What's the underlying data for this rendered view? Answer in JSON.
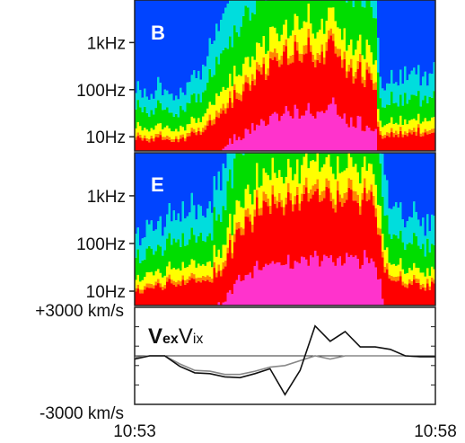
{
  "chart_data": [
    {
      "type": "heatmap",
      "panel_label": "B",
      "y_ticks": [
        "1kHz",
        "100Hz",
        "10Hz"
      ],
      "y_scale": "log",
      "y_tick_values_hz": [
        1000,
        100,
        10
      ],
      "colormap": [
        "#ff33cc",
        "#ff0000",
        "#ff8800",
        "#ffff00",
        "#00dd00",
        "#00dddd",
        "#0044ff"
      ],
      "intensity_profile": {
        "x_fraction": [
          0.0,
          0.1,
          0.2,
          0.25,
          0.35,
          0.45,
          0.55,
          0.65,
          0.7,
          0.8,
          0.82,
          0.9,
          1.0
        ],
        "level": [
          0.2,
          0.2,
          0.22,
          0.45,
          0.7,
          0.85,
          0.9,
          0.92,
          0.85,
          0.75,
          0.25,
          0.25,
          0.3
        ]
      }
    },
    {
      "type": "heatmap",
      "panel_label": "E",
      "y_ticks": [
        "1kHz",
        "100Hz",
        "10Hz"
      ],
      "y_scale": "log",
      "y_tick_values_hz": [
        1000,
        100,
        10
      ],
      "colormap": [
        "#ff33cc",
        "#ff0000",
        "#ff8800",
        "#ffff00",
        "#00dd00",
        "#00dddd",
        "#0044ff"
      ],
      "intensity_profile": {
        "x_fraction": [
          0.0,
          0.1,
          0.18,
          0.25,
          0.3,
          0.35,
          0.45,
          0.55,
          0.62,
          0.72,
          0.8,
          0.84,
          0.9,
          1.0
        ],
        "level": [
          0.25,
          0.3,
          0.35,
          0.4,
          0.6,
          0.8,
          0.92,
          0.95,
          0.97,
          0.97,
          0.92,
          0.45,
          0.35,
          0.3
        ]
      }
    },
    {
      "type": "line",
      "legend_bold": "V",
      "legend_bold_sub": "ex",
      "legend_normal": "V",
      "legend_normal_sub": "ix",
      "y_ticks": [
        "+3000 km/s",
        "-3000 km/s"
      ],
      "ylim": [
        -3000,
        3000
      ],
      "x_ticks": [
        "10:53",
        "10:58"
      ],
      "x": [
        0,
        0.25,
        0.5,
        0.75,
        1.0,
        1.25,
        1.5,
        1.75,
        2.0,
        2.25,
        2.5,
        2.75,
        3.0,
        3.25,
        3.5,
        3.75,
        4.0,
        4.25,
        4.5,
        4.75,
        5.0
      ],
      "series": [
        {
          "color": "#111111",
          "values": [
            -200,
            0,
            0,
            -650,
            -1050,
            -1100,
            -1300,
            -1350,
            -1100,
            -800,
            -2400,
            -900,
            1850,
            900,
            1500,
            550,
            550,
            400,
            0,
            -50,
            -50
          ]
        },
        {
          "color": "#888888",
          "values": [
            -100,
            0,
            0,
            -500,
            -900,
            -950,
            -1150,
            -1150,
            -950,
            -700,
            -600,
            -300,
            0,
            -200,
            0,
            0,
            0,
            0,
            0,
            -50,
            -50
          ]
        }
      ],
      "zero_line": true
    }
  ]
}
